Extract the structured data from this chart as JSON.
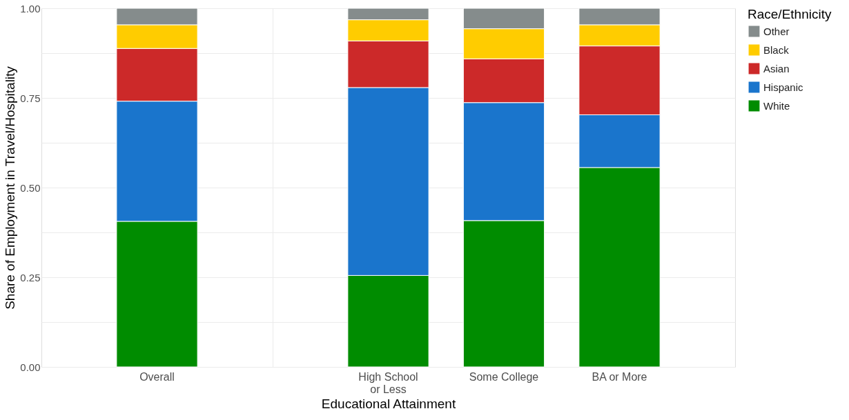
{
  "chart_data": {
    "type": "bar",
    "stacked": true,
    "xlabel": "Educational Attainment",
    "ylabel": "Share of Employment in Travel/Hospitality",
    "legend_title": "Race/Ethnicity",
    "categories": [
      "Overall",
      null,
      "High School\nor Less",
      "Some College",
      "BA or More"
    ],
    "series": [
      {
        "name": "White",
        "color": "#008c00",
        "values": [
          0.406,
          null,
          0.255,
          0.408,
          0.556
        ]
      },
      {
        "name": "Hispanic",
        "color": "#1a75cc",
        "values": [
          0.335,
          null,
          0.524,
          0.329,
          0.147
        ]
      },
      {
        "name": "Asian",
        "color": "#cc2929",
        "values": [
          0.147,
          null,
          0.13,
          0.122,
          0.192
        ]
      },
      {
        "name": "Black",
        "color": "#ffcc00",
        "values": [
          0.066,
          null,
          0.059,
          0.084,
          0.059
        ]
      },
      {
        "name": "Other",
        "color": "#858c8c",
        "values": [
          0.046,
          null,
          0.032,
          0.057,
          0.046
        ]
      }
    ],
    "ylim": [
      0,
      1
    ],
    "yticks": [
      {
        "value": 0,
        "label": "0.00"
      },
      {
        "value": 0.125,
        "label": null
      },
      {
        "value": 0.25,
        "label": "0.25"
      },
      {
        "value": 0.375,
        "label": null
      },
      {
        "value": 0.5,
        "label": "0.50"
      },
      {
        "value": 0.625,
        "label": null
      },
      {
        "value": 0.75,
        "label": "0.75"
      },
      {
        "value": 0.875,
        "label": null
      },
      {
        "value": 1,
        "label": "1.00"
      }
    ],
    "grid": true,
    "legend": "right"
  }
}
